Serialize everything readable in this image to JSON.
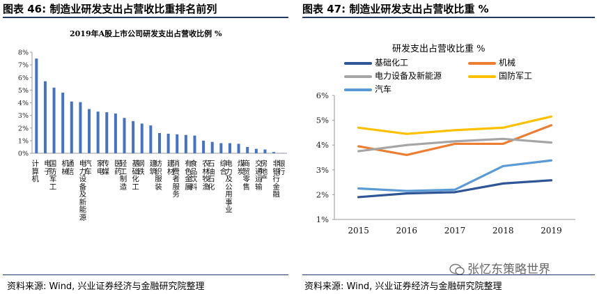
{
  "left": {
    "fig_title": "图表 46:  制造业研发支出占营收比重排名前列",
    "source": "资料来源: Wind, 兴业证券经济与金融研究院整理"
  },
  "right": {
    "fig_title": "图表 47:  制造业研发支出占营收比重  %",
    "source": "资料来源: Wind, 兴业证券经济与金融研究院整理"
  },
  "watermark": "张忆东策略世界",
  "chart_data": [
    {
      "type": "bar",
      "title": "2019年A股上市公司研发支出占营收比例  %",
      "color": "#4472c4",
      "ylim": [
        0,
        8
      ],
      "yticks": [
        "0%",
        "1%",
        "2%",
        "3%",
        "4%",
        "5%",
        "6%",
        "7%",
        "8%"
      ],
      "categories": [
        "计算机",
        "电子",
        "国防军工",
        "机械",
        "通信",
        "电力设备及新能源",
        "汽车",
        "家电",
        "传媒",
        "医药",
        "轻工制造",
        "基础化工",
        "钢铁",
        "建筑",
        "纺织服装",
        "建材",
        "消费者服务",
        "有色金属",
        "食品饮料",
        "农林牧渔",
        "石油石化",
        "综合",
        "电力及公用事业",
        "煤炭",
        "商贸零售",
        "交通运输",
        "房地产",
        "非银行金融",
        "银行"
      ],
      "values": [
        7.5,
        5.7,
        5.2,
        4.8,
        4.1,
        4.05,
        3.5,
        3.3,
        3.25,
        3.15,
        2.8,
        2.55,
        2.35,
        2.2,
        1.6,
        1.55,
        1.5,
        1.45,
        1.4,
        1.0,
        0.9,
        0.8,
        0.8,
        0.75,
        0.5,
        0.35,
        0.3,
        0.1,
        0.02
      ]
    },
    {
      "type": "line",
      "title": "研发支出占营收比重  %",
      "x": [
        "2015",
        "2016",
        "2017",
        "2018",
        "2019"
      ],
      "ylim": [
        1,
        6
      ],
      "yticks": [
        "1%",
        "2%",
        "3%",
        "4%",
        "5%",
        "6%"
      ],
      "series": [
        {
          "name": "基础化工",
          "color": "#2f5597",
          "values": [
            1.9,
            2.05,
            2.1,
            2.45,
            2.58
          ]
        },
        {
          "name": "机械",
          "color": "#ed7d31",
          "values": [
            3.95,
            3.6,
            4.05,
            4.05,
            4.8
          ]
        },
        {
          "name": "电力设备及新能源",
          "color": "#a5a5a5",
          "values": [
            3.75,
            4.0,
            4.15,
            4.25,
            4.1
          ]
        },
        {
          "name": "国防军工",
          "color": "#ffc000",
          "values": [
            4.7,
            4.45,
            4.6,
            4.7,
            5.15
          ]
        },
        {
          "name": "汽车",
          "color": "#5b9bd5",
          "values": [
            2.25,
            2.15,
            2.2,
            3.15,
            3.38
          ]
        }
      ]
    }
  ]
}
